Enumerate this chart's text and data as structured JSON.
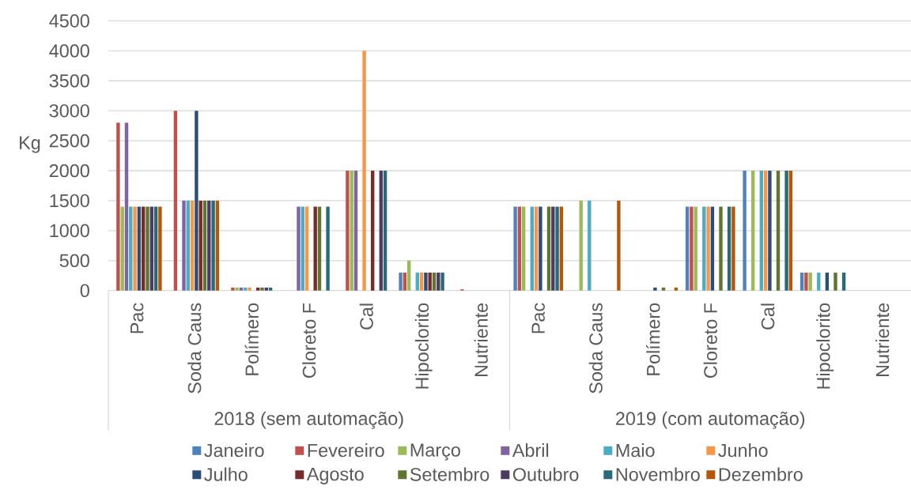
{
  "chart_data": {
    "type": "bar",
    "categories": [
      "Pac",
      "Soda Caus",
      "Polímero",
      "Cloreto F",
      "Cal",
      "Hipoclorito",
      "Nutriente",
      "Pac",
      "Soda Caus",
      "Polímero",
      "Cloreto F",
      "Cal",
      "Hipoclorito",
      "Nutriente"
    ],
    "annotations": [
      "2018 (sem automação)",
      "2019 (com automação)"
    ],
    "ylabel": "Kg",
    "ylim": [
      0,
      4500
    ],
    "yticks": [
      0,
      500,
      1000,
      1500,
      2000,
      2500,
      3000,
      3500,
      4000,
      4500
    ],
    "grid": "y",
    "legend": "bottom",
    "series": [
      {
        "name": "Janeiro",
        "color": "#4f81bd",
        "values": [
          null,
          null,
          null,
          null,
          null,
          300,
          null,
          1400,
          null,
          null,
          1400,
          2000,
          300,
          null
        ]
      },
      {
        "name": "Fevereiro",
        "color": "#c0504d",
        "values": [
          2800,
          3000,
          50,
          null,
          2000,
          300,
          20,
          1400,
          null,
          null,
          1400,
          null,
          300,
          null
        ]
      },
      {
        "name": "Março",
        "color": "#9bbb59",
        "values": [
          1400,
          null,
          50,
          null,
          2000,
          500,
          null,
          1400,
          1500,
          null,
          1400,
          2000,
          300,
          null
        ]
      },
      {
        "name": "Abril",
        "color": "#8064a2",
        "values": [
          2800,
          1500,
          50,
          1400,
          2000,
          null,
          null,
          null,
          null,
          null,
          null,
          null,
          null,
          null
        ]
      },
      {
        "name": "Maio",
        "color": "#4bacc6",
        "values": [
          1400,
          1500,
          50,
          1400,
          null,
          300,
          null,
          1400,
          1500,
          null,
          1400,
          2000,
          300,
          null
        ]
      },
      {
        "name": "Junho",
        "color": "#f79646",
        "values": [
          1400,
          1500,
          50,
          1400,
          4000,
          300,
          null,
          1400,
          null,
          null,
          1400,
          2000,
          null,
          null
        ]
      },
      {
        "name": "Julho",
        "color": "#2c4d75",
        "values": [
          1400,
          3000,
          null,
          null,
          null,
          300,
          null,
          1400,
          null,
          50,
          1400,
          2000,
          300,
          null
        ]
      },
      {
        "name": "Agosto",
        "color": "#772c2a",
        "values": [
          1400,
          1500,
          50,
          1400,
          2000,
          300,
          null,
          null,
          null,
          null,
          null,
          null,
          null,
          null
        ]
      },
      {
        "name": "Setembro",
        "color": "#5f7530",
        "values": [
          1400,
          1500,
          50,
          1400,
          null,
          300,
          null,
          1400,
          null,
          50,
          1400,
          2000,
          300,
          null
        ]
      },
      {
        "name": "Outubro",
        "color": "#4d3b62",
        "values": [
          1400,
          1500,
          50,
          null,
          2000,
          300,
          null,
          1400,
          null,
          null,
          null,
          null,
          null,
          null
        ]
      },
      {
        "name": "Novembro",
        "color": "#276a7c",
        "values": [
          1400,
          1500,
          50,
          1400,
          2000,
          300,
          null,
          1400,
          null,
          null,
          1400,
          2000,
          300,
          null
        ]
      },
      {
        "name": "Dezembro",
        "color": "#b65708",
        "values": [
          1400,
          1500,
          null,
          null,
          null,
          null,
          null,
          1400,
          1500,
          50,
          1400,
          2000,
          null,
          null
        ]
      }
    ]
  }
}
